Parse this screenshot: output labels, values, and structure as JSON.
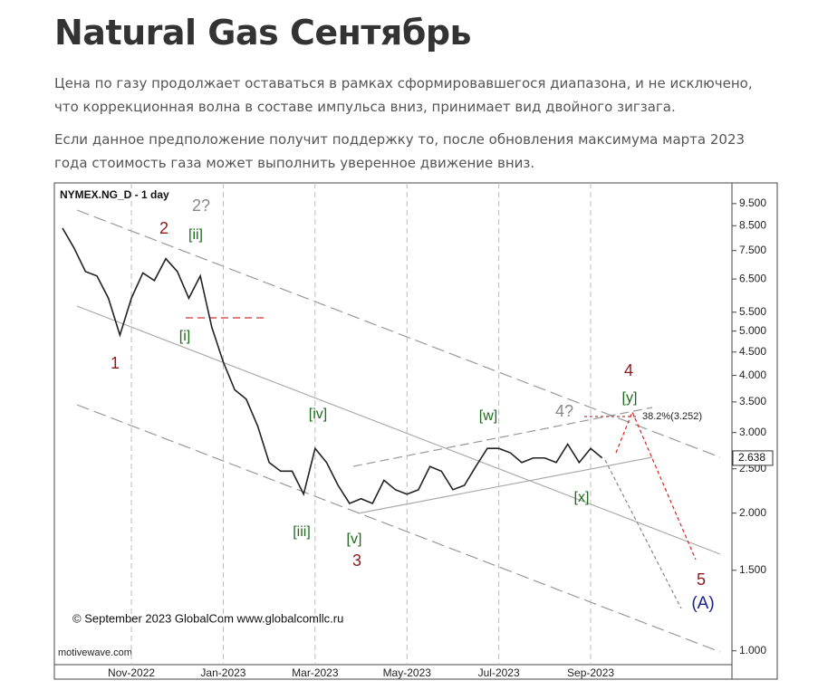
{
  "header": {
    "title": "Natural Gas Сентябрь"
  },
  "paragraphs": [
    "Цена по газу продолжает оставаться в рамках сформировавшегося диапазона, и не исключено, что коррекционная волна в составе импульса вниз, принимает вид двойного зигзага.",
    "Если данное предположение получит поддержку то, после обновления максимума марта 2023 года стоимость газа может выполнить уверенное движение вниз."
  ],
  "chart_data": {
    "type": "line",
    "title": "NYMEX.NG_D - 1 day",
    "log_scale": true,
    "color": "#222",
    "categories": [
      null,
      null,
      null,
      null,
      null,
      null,
      "Nov-2022",
      null,
      null,
      null,
      null,
      null,
      null,
      null,
      "Jan-2023",
      null,
      null,
      null,
      null,
      null,
      null,
      null,
      "Mar-2023",
      null,
      null,
      null,
      null,
      null,
      null,
      null,
      "May-2023",
      null,
      null,
      null,
      null,
      null,
      null,
      null,
      "Jul-2023",
      null,
      null,
      null,
      null,
      null,
      null,
      null,
      "Sep-2023",
      null,
      null,
      null,
      null,
      null,
      null,
      null,
      null,
      null,
      null,
      null,
      null
    ],
    "values": [
      8.4,
      7.6,
      6.75,
      6.6,
      5.9,
      4.9,
      5.9,
      6.7,
      6.45,
      7.2,
      6.75,
      5.9,
      6.6,
      5.1,
      4.28,
      3.72,
      3.55,
      3.1,
      2.58,
      2.47,
      2.47,
      2.2,
      2.77,
      2.58,
      2.3,
      2.1,
      2.15,
      2.1,
      2.36,
      2.25,
      2.2,
      2.25,
      2.53,
      2.47,
      2.25,
      2.3,
      2.53,
      2.77,
      2.77,
      2.71,
      2.58,
      2.64,
      2.64,
      2.58,
      2.83,
      2.58,
      2.77,
      2.64,
      null,
      null,
      null,
      null,
      null,
      null,
      null,
      null,
      null,
      null,
      null
    ],
    "ylim": [
      0.92,
      10.4
    ],
    "yticks": [
      {
        "value": 1,
        "label": "1.000"
      },
      {
        "value": 1.5,
        "label": "1.500"
      },
      {
        "value": 2,
        "label": "2.000"
      },
      {
        "value": 2.5,
        "label": "2.500"
      },
      {
        "value": 3,
        "label": "3.000"
      },
      {
        "value": 3.5,
        "label": "3.500"
      },
      {
        "value": 4,
        "label": "4.000"
      },
      {
        "value": 4.5,
        "label": "4.500"
      },
      {
        "value": 5,
        "label": "5.000"
      },
      {
        "value": 5.5,
        "label": "5.500"
      },
      {
        "value": 6.5,
        "label": "6.500"
      },
      {
        "value": 7.5,
        "label": "7.500"
      },
      {
        "value": 8.5,
        "label": "8.500"
      },
      {
        "value": 9.5,
        "label": "9.500"
      }
    ],
    "last_value": 2.638,
    "grid": true,
    "annotations": [
      {
        "text": "1",
        "color": "#8b1a1a"
      },
      {
        "text": "2",
        "color": "#8b1a1a"
      },
      {
        "text": "2?",
        "color": "#888888"
      },
      {
        "text": "[ii]",
        "color": "#1e6b1e"
      },
      {
        "text": "[i]",
        "color": "#1e6b1e"
      },
      {
        "text": "[iii]",
        "color": "#1e6b1e"
      },
      {
        "text": "[iv]",
        "color": "#1e6b1e"
      },
      {
        "text": "[v]",
        "color": "#1e6b1e"
      },
      {
        "text": "3",
        "color": "#8b1a1a"
      },
      {
        "text": "[w]",
        "color": "#1e6b1e"
      },
      {
        "text": "[x]",
        "color": "#1e6b1e"
      },
      {
        "text": "4?",
        "color": "#888888"
      },
      {
        "text": "[y]",
        "color": "#1e6b1e"
      },
      {
        "text": "4",
        "color": "#8b1a1a"
      },
      {
        "text": "5",
        "color": "#8b1a1a"
      },
      {
        "text": "(A)",
        "color": "#1a237e"
      },
      {
        "text": "38.2%(3.252)",
        "color": "#222222"
      }
    ],
    "credits": [
      "© September 2023 GlobalCom www.globalcomllc.ru",
      "motivewave.com"
    ]
  }
}
